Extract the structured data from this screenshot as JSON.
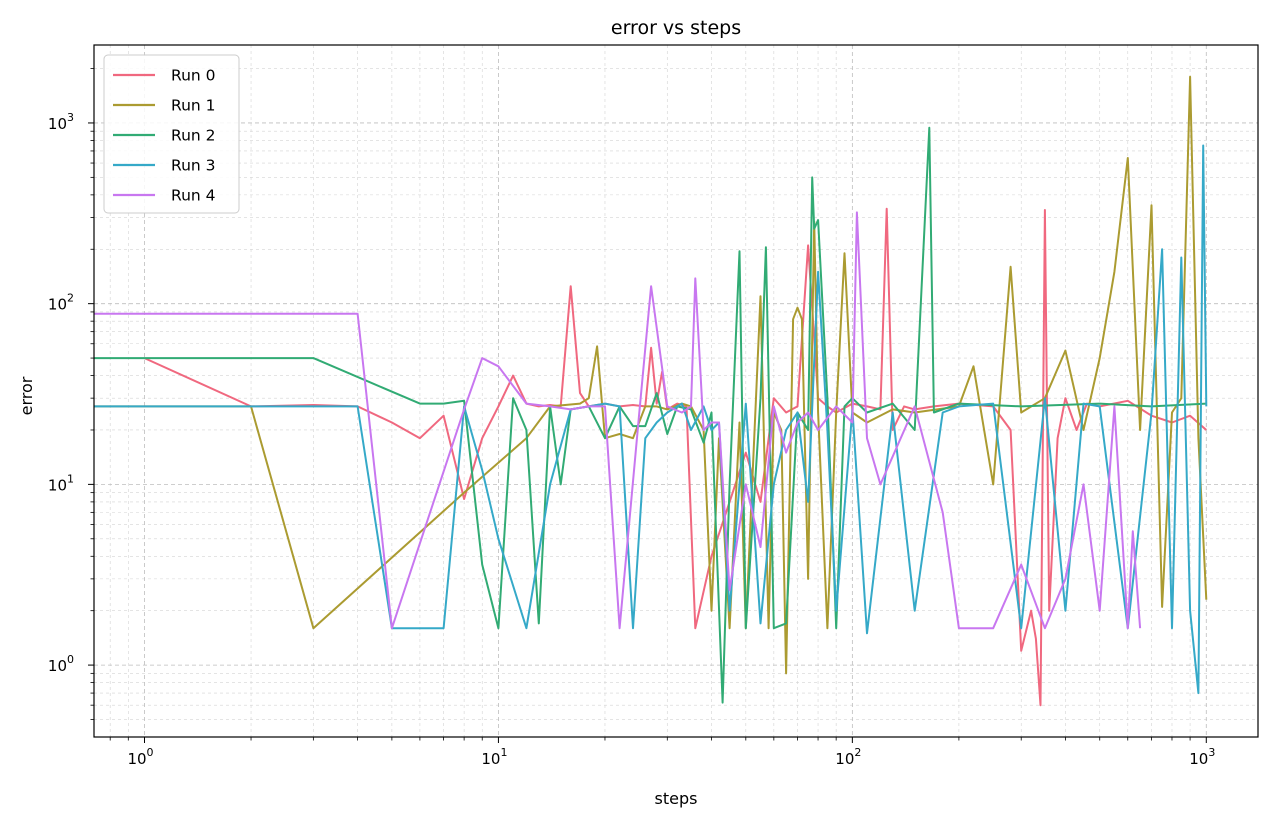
{
  "chart_data": {
    "type": "line",
    "title": "error vs steps",
    "xlabel": "steps",
    "ylabel": "error",
    "xscale": "log",
    "yscale": "log",
    "xlim": [
      0.72,
      1400
    ],
    "ylim": [
      0.4,
      2700
    ],
    "x_ticks": [
      1,
      10,
      100,
      1000
    ],
    "y_ticks": [
      1,
      10,
      100,
      1000
    ],
    "grid": true,
    "legend_position": "top-left",
    "series": [
      {
        "name": "Run 0",
        "color": "#f0687f",
        "points": [
          [
            1,
            50
          ],
          [
            2,
            27
          ],
          [
            3,
            27.5
          ],
          [
            4,
            27
          ],
          [
            5,
            22
          ],
          [
            6,
            18
          ],
          [
            7,
            24
          ],
          [
            8,
            8.3
          ],
          [
            9,
            18
          ],
          [
            10,
            27
          ],
          [
            11,
            40
          ],
          [
            12,
            28
          ],
          [
            13,
            27
          ],
          [
            14,
            27.5
          ],
          [
            15,
            27
          ],
          [
            16,
            125
          ],
          [
            17,
            32
          ],
          [
            18,
            27
          ],
          [
            20,
            28
          ],
          [
            22,
            27
          ],
          [
            24,
            27.5
          ],
          [
            26,
            27
          ],
          [
            27,
            57
          ],
          [
            28,
            28
          ],
          [
            29,
            42
          ],
          [
            30,
            26
          ],
          [
            32,
            28
          ],
          [
            34,
            27
          ],
          [
            36,
            1.6
          ],
          [
            40,
            4
          ],
          [
            45,
            8
          ],
          [
            50,
            15
          ],
          [
            55,
            8
          ],
          [
            60,
            30
          ],
          [
            65,
            25
          ],
          [
            70,
            27
          ],
          [
            75,
            210
          ],
          [
            80,
            30
          ],
          [
            85,
            27
          ],
          [
            90,
            25
          ],
          [
            100,
            28
          ],
          [
            110,
            27
          ],
          [
            120,
            26
          ],
          [
            125,
            335
          ],
          [
            130,
            20
          ],
          [
            140,
            27
          ],
          [
            150,
            26
          ],
          [
            170,
            27
          ],
          [
            200,
            28
          ],
          [
            250,
            27
          ],
          [
            280,
            20
          ],
          [
            300,
            1.2
          ],
          [
            320,
            2
          ],
          [
            330,
            1.4
          ],
          [
            340,
            0.6
          ],
          [
            350,
            330
          ],
          [
            360,
            2
          ],
          [
            380,
            18
          ],
          [
            400,
            30
          ],
          [
            430,
            20
          ],
          [
            460,
            28
          ],
          [
            500,
            27
          ],
          [
            600,
            29
          ],
          [
            700,
            24
          ],
          [
            800,
            22
          ],
          [
            900,
            24
          ],
          [
            1000,
            20
          ]
        ]
      },
      {
        "name": "Run 1",
        "color": "#ab9b31",
        "points": [
          [
            0.72,
            27
          ],
          [
            2,
            27
          ],
          [
            3,
            1.6
          ],
          [
            8,
            9
          ],
          [
            12,
            18
          ],
          [
            14,
            27
          ],
          [
            17,
            28
          ],
          [
            18,
            30
          ],
          [
            19,
            58
          ],
          [
            20,
            18
          ],
          [
            22,
            19
          ],
          [
            24,
            18
          ],
          [
            26,
            27
          ],
          [
            28,
            27
          ],
          [
            30,
            26
          ],
          [
            33,
            28
          ],
          [
            35,
            27
          ],
          [
            38,
            20
          ],
          [
            40,
            2
          ],
          [
            42,
            18
          ],
          [
            45,
            1.6
          ],
          [
            48,
            22
          ],
          [
            50,
            1.6
          ],
          [
            55,
            110
          ],
          [
            58,
            1.6
          ],
          [
            60,
            25
          ],
          [
            63,
            20
          ],
          [
            65,
            0.9
          ],
          [
            68,
            82
          ],
          [
            70,
            95
          ],
          [
            72,
            82
          ],
          [
            75,
            3
          ],
          [
            78,
            285
          ],
          [
            80,
            25
          ],
          [
            85,
            1.6
          ],
          [
            90,
            25
          ],
          [
            95,
            190
          ],
          [
            100,
            25
          ],
          [
            110,
            22
          ],
          [
            130,
            26
          ],
          [
            150,
            25
          ],
          [
            200,
            27
          ],
          [
            220,
            45
          ],
          [
            250,
            10
          ],
          [
            280,
            160
          ],
          [
            300,
            25
          ],
          [
            350,
            30
          ],
          [
            400,
            55
          ],
          [
            450,
            20
          ],
          [
            500,
            50
          ],
          [
            550,
            150
          ],
          [
            600,
            640
          ],
          [
            650,
            20
          ],
          [
            700,
            350
          ],
          [
            750,
            2.1
          ],
          [
            800,
            25
          ],
          [
            850,
            30
          ],
          [
            900,
            1800
          ],
          [
            950,
            18
          ],
          [
            1000,
            2.3
          ]
        ]
      },
      {
        "name": "Run 2",
        "color": "#31ab74",
        "points": [
          [
            0.72,
            50
          ],
          [
            3,
            50
          ],
          [
            6,
            28
          ],
          [
            7,
            28
          ],
          [
            8,
            29
          ],
          [
            9,
            3.6
          ],
          [
            10,
            1.6
          ],
          [
            11,
            30
          ],
          [
            12,
            20
          ],
          [
            13,
            1.7
          ],
          [
            14,
            27
          ],
          [
            15,
            10
          ],
          [
            16,
            26
          ],
          [
            18,
            27
          ],
          [
            20,
            18
          ],
          [
            22,
            27
          ],
          [
            24,
            21
          ],
          [
            26,
            21
          ],
          [
            28,
            32
          ],
          [
            30,
            19
          ],
          [
            32,
            27
          ],
          [
            35,
            26
          ],
          [
            38,
            17
          ],
          [
            40,
            25
          ],
          [
            43,
            0.62
          ],
          [
            45,
            10
          ],
          [
            48,
            195
          ],
          [
            50,
            1.6
          ],
          [
            55,
            30
          ],
          [
            57,
            205
          ],
          [
            60,
            1.6
          ],
          [
            65,
            1.7
          ],
          [
            70,
            25
          ],
          [
            75,
            20
          ],
          [
            77,
            500
          ],
          [
            78,
            260
          ],
          [
            80,
            290
          ],
          [
            85,
            30
          ],
          [
            90,
            1.6
          ],
          [
            95,
            27
          ],
          [
            100,
            30
          ],
          [
            110,
            25
          ],
          [
            130,
            28
          ],
          [
            150,
            20
          ],
          [
            165,
            940
          ],
          [
            170,
            25
          ],
          [
            200,
            28
          ],
          [
            300,
            27
          ],
          [
            500,
            28
          ],
          [
            700,
            27
          ],
          [
            1000,
            28
          ]
        ]
      },
      {
        "name": "Run 3",
        "color": "#35a9c8",
        "points": [
          [
            0.72,
            27
          ],
          [
            4,
            27
          ],
          [
            5,
            1.6
          ],
          [
            7,
            1.6
          ],
          [
            8,
            27
          ],
          [
            9,
            12
          ],
          [
            10,
            5
          ],
          [
            12,
            1.6
          ],
          [
            14,
            10
          ],
          [
            16,
            26
          ],
          [
            18,
            27
          ],
          [
            20,
            28
          ],
          [
            22,
            27
          ],
          [
            24,
            1.6
          ],
          [
            26,
            18
          ],
          [
            28,
            22
          ],
          [
            30,
            25
          ],
          [
            33,
            28
          ],
          [
            35,
            20
          ],
          [
            38,
            27
          ],
          [
            40,
            20
          ],
          [
            42,
            22
          ],
          [
            45,
            2
          ],
          [
            50,
            28
          ],
          [
            55,
            1.7
          ],
          [
            60,
            10
          ],
          [
            65,
            20
          ],
          [
            70,
            25
          ],
          [
            75,
            8
          ],
          [
            80,
            150
          ],
          [
            85,
            20
          ],
          [
            90,
            2
          ],
          [
            100,
            26
          ],
          [
            110,
            1.5
          ],
          [
            130,
            25
          ],
          [
            150,
            2
          ],
          [
            180,
            25
          ],
          [
            200,
            27
          ],
          [
            250,
            28
          ],
          [
            300,
            1.6
          ],
          [
            350,
            30
          ],
          [
            400,
            2
          ],
          [
            450,
            28
          ],
          [
            500,
            27
          ],
          [
            600,
            1.6
          ],
          [
            700,
            25
          ],
          [
            750,
            200
          ],
          [
            800,
            1.6
          ],
          [
            850,
            180
          ],
          [
            900,
            2
          ],
          [
            950,
            0.7
          ],
          [
            980,
            750
          ],
          [
            1000,
            27
          ]
        ]
      },
      {
        "name": "Run 4",
        "color": "#c877f0",
        "points": [
          [
            0.72,
            88
          ],
          [
            4,
            88
          ],
          [
            5,
            1.6
          ],
          [
            8,
            26
          ],
          [
            9,
            50
          ],
          [
            10,
            45
          ],
          [
            12,
            28
          ],
          [
            14,
            27
          ],
          [
            16,
            26
          ],
          [
            18,
            27
          ],
          [
            20,
            27
          ],
          [
            22,
            1.6
          ],
          [
            25,
            25
          ],
          [
            27,
            125
          ],
          [
            30,
            27
          ],
          [
            33,
            25
          ],
          [
            35,
            27
          ],
          [
            36,
            138
          ],
          [
            38,
            20
          ],
          [
            40,
            22
          ],
          [
            42,
            22
          ],
          [
            45,
            2.6
          ],
          [
            50,
            10
          ],
          [
            55,
            4.5
          ],
          [
            60,
            27
          ],
          [
            65,
            15
          ],
          [
            70,
            22
          ],
          [
            75,
            25
          ],
          [
            80,
            20
          ],
          [
            90,
            27
          ],
          [
            100,
            22
          ],
          [
            103,
            320
          ],
          [
            110,
            18
          ],
          [
            120,
            10
          ],
          [
            150,
            27
          ],
          [
            180,
            7
          ],
          [
            200,
            1.6
          ],
          [
            250,
            1.6
          ],
          [
            300,
            3.6
          ],
          [
            350,
            1.6
          ],
          [
            400,
            3
          ],
          [
            450,
            10
          ],
          [
            500,
            2
          ],
          [
            550,
            27
          ],
          [
            600,
            1.6
          ],
          [
            620,
            5.5
          ],
          [
            650,
            1.6
          ]
        ]
      }
    ]
  }
}
